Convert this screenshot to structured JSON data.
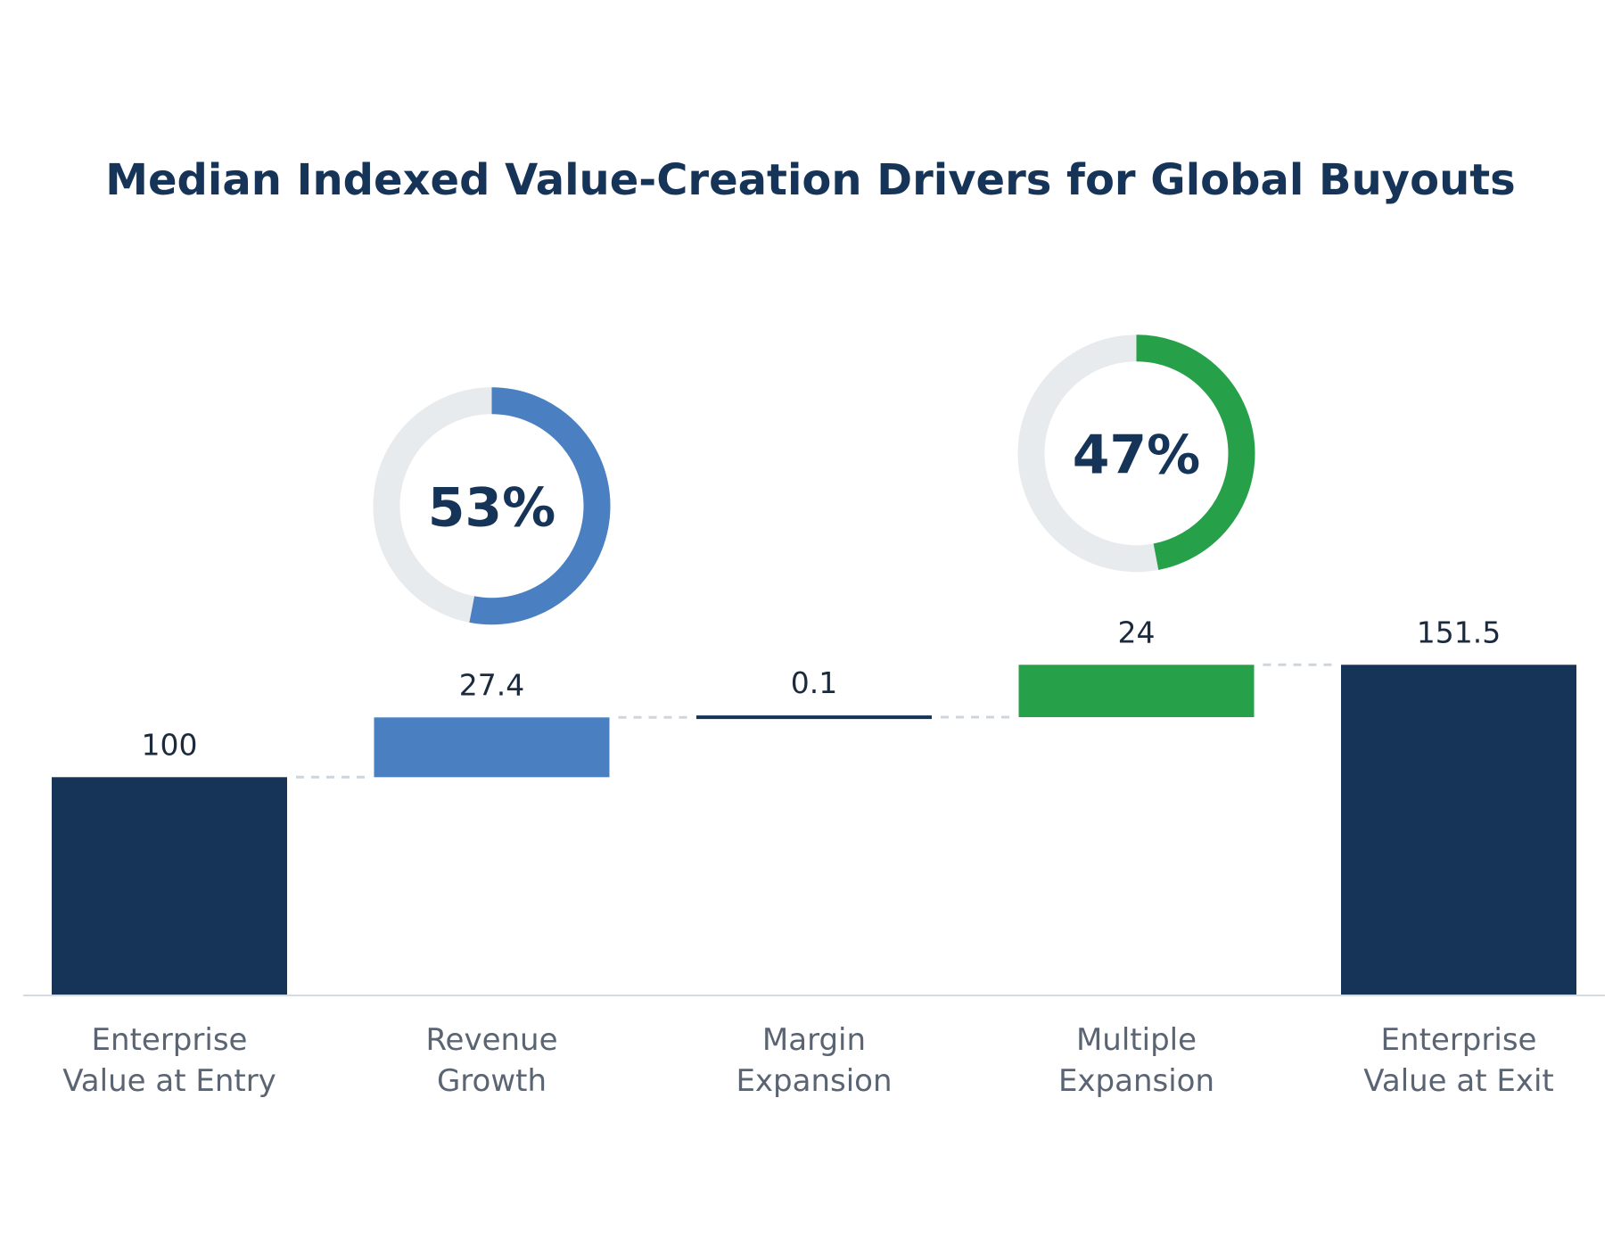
{
  "chart_data": {
    "type": "waterfall",
    "title": "Median Indexed Value-Creation Drivers for Global Buyouts",
    "xlabel": "",
    "ylabel": "",
    "ylim": [
      0,
      151.5
    ],
    "grid": false,
    "steps": [
      {
        "kind": "total",
        "label_lines": [
          "Enterprise",
          "Value at Entry"
        ],
        "value": 100,
        "value_label": "100"
      },
      {
        "kind": "increase",
        "label_lines": [
          "Revenue",
          "Growth"
        ],
        "value": 27.4,
        "value_label": "27.4"
      },
      {
        "kind": "increase",
        "label_lines": [
          "Margin",
          "Expansion"
        ],
        "value": 0.1,
        "value_label": "0.1"
      },
      {
        "kind": "increase",
        "label_lines": [
          "Multiple",
          "Expansion"
        ],
        "value": 24,
        "value_label": "24"
      },
      {
        "kind": "total",
        "label_lines": [
          "Enterprise",
          "Value at Exit"
        ],
        "value": 151.5,
        "value_label": "151.5"
      }
    ],
    "donuts": [
      {
        "step_index": 1,
        "percent": 53,
        "label": "53%",
        "color": "#4a7fc1"
      },
      {
        "step_index": 3,
        "percent": 47,
        "label": "47%",
        "color": "#27a149"
      }
    ]
  },
  "colors": {
    "total": "#163457",
    "revenue_growth": "#4a7fc1",
    "margin_expansion": "#163457",
    "multiple_expansion": "#27a149",
    "donut_track": "#e8ebee",
    "connector": "#cfd5dc",
    "baseline": "#d5dbe2"
  }
}
